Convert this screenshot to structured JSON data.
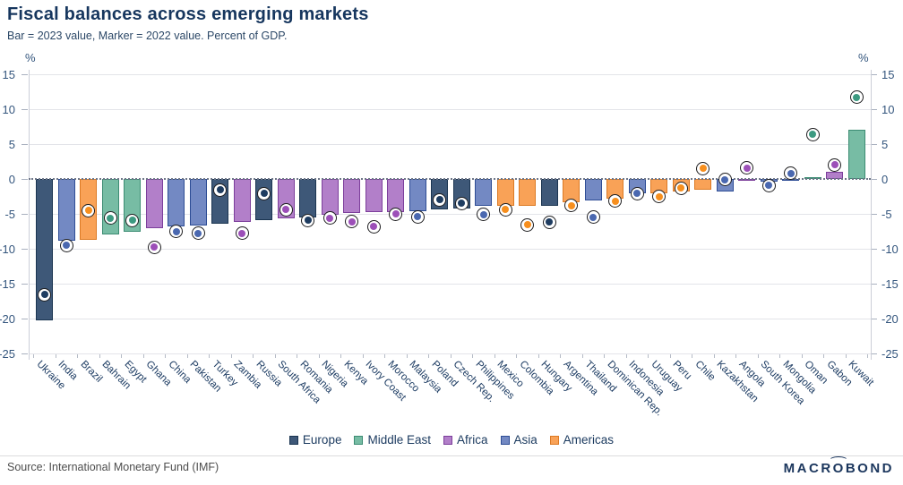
{
  "header": {
    "title": "Fiscal balances across emerging markets",
    "subtitle": "Bar = 2023 value, Marker = 2022 value. Percent of GDP."
  },
  "chart_data": {
    "type": "bar",
    "title": "Fiscal balances across emerging markets",
    "subtitle": "Bar = 2023 value, Marker = 2022 value. Percent of GDP.",
    "unit_label": "%",
    "bar_series_label": "2023 value",
    "marker_series_label": "2022 value",
    "ylim": [
      -25,
      15
    ],
    "yticks": [
      15,
      10,
      5,
      0,
      -5,
      -10,
      -15,
      -20,
      -25
    ],
    "grid": true,
    "legend_position": "bottom-center",
    "legend": [
      {
        "key": "europe",
        "label": "Europe"
      },
      {
        "key": "middle_east",
        "label": "Middle East"
      },
      {
        "key": "africa",
        "label": "Africa"
      },
      {
        "key": "asia",
        "label": "Asia"
      },
      {
        "key": "americas",
        "label": "Americas"
      }
    ],
    "region_colors": {
      "europe": {
        "fill": "#3E5878",
        "border": "#1B3551",
        "dot": "#1E3C60"
      },
      "middle_east": {
        "fill": "#77BCA4",
        "border": "#3C8C73",
        "dot": "#3C9A81"
      },
      "africa": {
        "fill": "#B27FC9",
        "border": "#7C3E9B",
        "dot": "#9C4FB8"
      },
      "asia": {
        "fill": "#7389C3",
        "border": "#2E4D95",
        "dot": "#4A68B0"
      },
      "americas": {
        "fill": "#F9A257",
        "border": "#DC7A24",
        "dot": "#F78F1E"
      }
    },
    "countries": [
      {
        "name": "Ukraine",
        "region": "europe",
        "bar_2023": -20.3,
        "marker_2022": -16.6
      },
      {
        "name": "India",
        "region": "asia",
        "bar_2023": -8.8,
        "marker_2022": -9.5
      },
      {
        "name": "Brazil",
        "region": "americas",
        "bar_2023": -8.7,
        "marker_2022": -4.5
      },
      {
        "name": "Bahrain",
        "region": "middle_east",
        "bar_2023": -8.0,
        "marker_2022": -5.6
      },
      {
        "name": "Egypt",
        "region": "middle_east",
        "bar_2023": -7.6,
        "marker_2022": -5.9
      },
      {
        "name": "Ghana",
        "region": "africa",
        "bar_2023": -7.0,
        "marker_2022": -9.8
      },
      {
        "name": "China",
        "region": "asia",
        "bar_2023": -6.8,
        "marker_2022": -7.5
      },
      {
        "name": "Pakistan",
        "region": "asia",
        "bar_2023": -6.7,
        "marker_2022": -7.8
      },
      {
        "name": "Turkey",
        "region": "europe",
        "bar_2023": -6.4,
        "marker_2022": -1.6
      },
      {
        "name": "Zambia",
        "region": "africa",
        "bar_2023": -6.2,
        "marker_2022": -7.8
      },
      {
        "name": "Russia",
        "region": "europe",
        "bar_2023": -5.9,
        "marker_2022": -2.1
      },
      {
        "name": "South Africa",
        "region": "africa",
        "bar_2023": -5.7,
        "marker_2022": -4.4
      },
      {
        "name": "Romania",
        "region": "europe",
        "bar_2023": -5.5,
        "marker_2022": -5.9
      },
      {
        "name": "Nigeria",
        "region": "africa",
        "bar_2023": -5.1,
        "marker_2022": -5.6
      },
      {
        "name": "Kenya",
        "region": "africa",
        "bar_2023": -4.9,
        "marker_2022": -6.1
      },
      {
        "name": "Ivory Coast",
        "region": "africa",
        "bar_2023": -4.8,
        "marker_2022": -6.8
      },
      {
        "name": "Morocco",
        "region": "africa",
        "bar_2023": -4.7,
        "marker_2022": -5.0
      },
      {
        "name": "Malaysia",
        "region": "asia",
        "bar_2023": -4.6,
        "marker_2022": -5.4
      },
      {
        "name": "Poland",
        "region": "europe",
        "bar_2023": -4.3,
        "marker_2022": -3.0
      },
      {
        "name": "Czech Rep.",
        "region": "europe",
        "bar_2023": -4.2,
        "marker_2022": -3.5
      },
      {
        "name": "Philippines",
        "region": "asia",
        "bar_2023": -3.8,
        "marker_2022": -5.1
      },
      {
        "name": "Mexico",
        "region": "americas",
        "bar_2023": -3.8,
        "marker_2022": -4.4
      },
      {
        "name": "Colombia",
        "region": "americas",
        "bar_2023": -3.8,
        "marker_2022": -6.6
      },
      {
        "name": "Hungary",
        "region": "europe",
        "bar_2023": -3.8,
        "marker_2022": -6.2
      },
      {
        "name": "Argentina",
        "region": "americas",
        "bar_2023": -3.3,
        "marker_2022": -3.8
      },
      {
        "name": "Thailand",
        "region": "asia",
        "bar_2023": -3.1,
        "marker_2022": -5.5
      },
      {
        "name": "Dominican Rep.",
        "region": "americas",
        "bar_2023": -2.8,
        "marker_2022": -3.2
      },
      {
        "name": "Indonesia",
        "region": "asia",
        "bar_2023": -2.1,
        "marker_2022": -2.1
      },
      {
        "name": "Uruguay",
        "region": "americas",
        "bar_2023": -2.0,
        "marker_2022": -2.5
      },
      {
        "name": "Peru",
        "region": "americas",
        "bar_2023": -1.8,
        "marker_2022": -1.3
      },
      {
        "name": "Chile",
        "region": "americas",
        "bar_2023": -1.5,
        "marker_2022": 1.5
      },
      {
        "name": "Kazakhstan",
        "region": "asia",
        "bar_2023": -1.8,
        "marker_2022": -0.1
      },
      {
        "name": "Angola",
        "region": "africa",
        "bar_2023": -0.3,
        "marker_2022": 1.6
      },
      {
        "name": "South Korea",
        "region": "asia",
        "bar_2023": -0.4,
        "marker_2022": -0.9
      },
      {
        "name": "Mongolia",
        "region": "asia",
        "bar_2023": -0.2,
        "marker_2022": 0.8
      },
      {
        "name": "Oman",
        "region": "middle_east",
        "bar_2023": 0.3,
        "marker_2022": 6.4
      },
      {
        "name": "Gabon",
        "region": "africa",
        "bar_2023": 1.0,
        "marker_2022": 2.0
      },
      {
        "name": "Kuwait",
        "region": "middle_east",
        "bar_2023": 7.0,
        "marker_2022": 11.7
      }
    ]
  },
  "footer": {
    "source": "Source: International Monetary Fund (IMF)",
    "logo": "MACROBOND"
  }
}
